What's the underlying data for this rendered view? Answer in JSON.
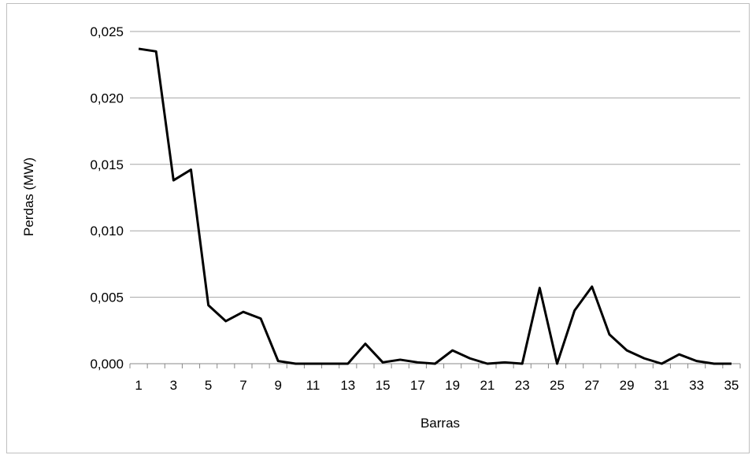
{
  "chart_data": {
    "type": "line",
    "xlabel": "Barras",
    "ylabel": "Perdas (MW)",
    "ylim": [
      0,
      0.025
    ],
    "y_ticks": [
      "0,000",
      "0,005",
      "0,010",
      "0,015",
      "0,020",
      "0,025"
    ],
    "x_tick_labels": [
      "1",
      "3",
      "5",
      "7",
      "9",
      "11",
      "13",
      "15",
      "17",
      "19",
      "21",
      "23",
      "25",
      "27",
      "29",
      "31",
      "33",
      "35"
    ],
    "grid": true,
    "line_color": "#000000",
    "series": [
      {
        "x": [
          1,
          2,
          3,
          4,
          5,
          6,
          7,
          8,
          9,
          10,
          11,
          12,
          13,
          14,
          15,
          16,
          17,
          18,
          19,
          20,
          21,
          22,
          23,
          24,
          25,
          26,
          27,
          28,
          29,
          30,
          31,
          32,
          33,
          34,
          35
        ],
        "values": [
          0.0237,
          0.0235,
          0.0138,
          0.0146,
          0.0044,
          0.0032,
          0.0039,
          0.0034,
          0.0002,
          0.0,
          0.0,
          0.0,
          0.0,
          0.0015,
          0.0001,
          0.0003,
          0.0001,
          0.0,
          0.001,
          0.0004,
          0.0,
          0.0001,
          0.0,
          0.0057,
          0.0,
          0.004,
          0.0058,
          0.0022,
          0.001,
          0.0004,
          0.0,
          0.0007,
          0.0002,
          0.0,
          0.0
        ]
      }
    ]
  }
}
